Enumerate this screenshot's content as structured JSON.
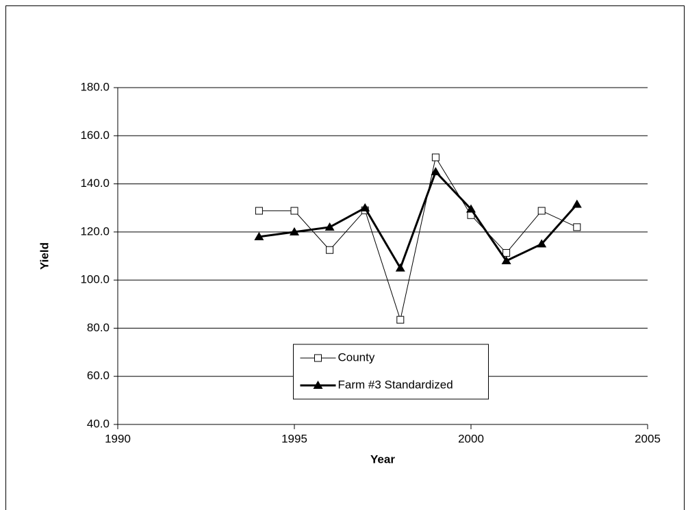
{
  "chart_data": {
    "type": "line",
    "x_label": "Year",
    "y_label": "Yield",
    "x": [
      1994,
      1995,
      1996,
      1997,
      1998,
      1999,
      2000,
      2001,
      2002,
      2003
    ],
    "series": [
      {
        "name": "County",
        "color": "#000000",
        "marker": "square",
        "line_width": 1,
        "values": [
          128.8,
          128.8,
          112.5,
          129.0,
          83.5,
          151.0,
          127.0,
          111.3,
          128.8,
          122.0
        ]
      },
      {
        "name": "Farm #3 Standardized",
        "color": "#000000",
        "marker": "triangle",
        "line_width": 3,
        "values": [
          118.0,
          120.0,
          122.0,
          130.0,
          105.0,
          145.0,
          129.5,
          108.0,
          115.0,
          131.5
        ]
      }
    ],
    "xlim": [
      1990,
      2005
    ],
    "xticks": [
      1990,
      1995,
      2000,
      2005
    ],
    "ylim": [
      40,
      180
    ],
    "yticks": [
      {
        "value": 40,
        "label": "40.0"
      },
      {
        "value": 60,
        "label": "60.0"
      },
      {
        "value": 80,
        "label": "80.0"
      },
      {
        "value": 100,
        "label": "100.0"
      },
      {
        "value": 120,
        "label": "120.0"
      },
      {
        "value": 140,
        "label": "140.0"
      },
      {
        "value": 160,
        "label": "160.0"
      },
      {
        "value": 180,
        "label": "180.0"
      }
    ],
    "grid": true,
    "legend": "lower center"
  }
}
